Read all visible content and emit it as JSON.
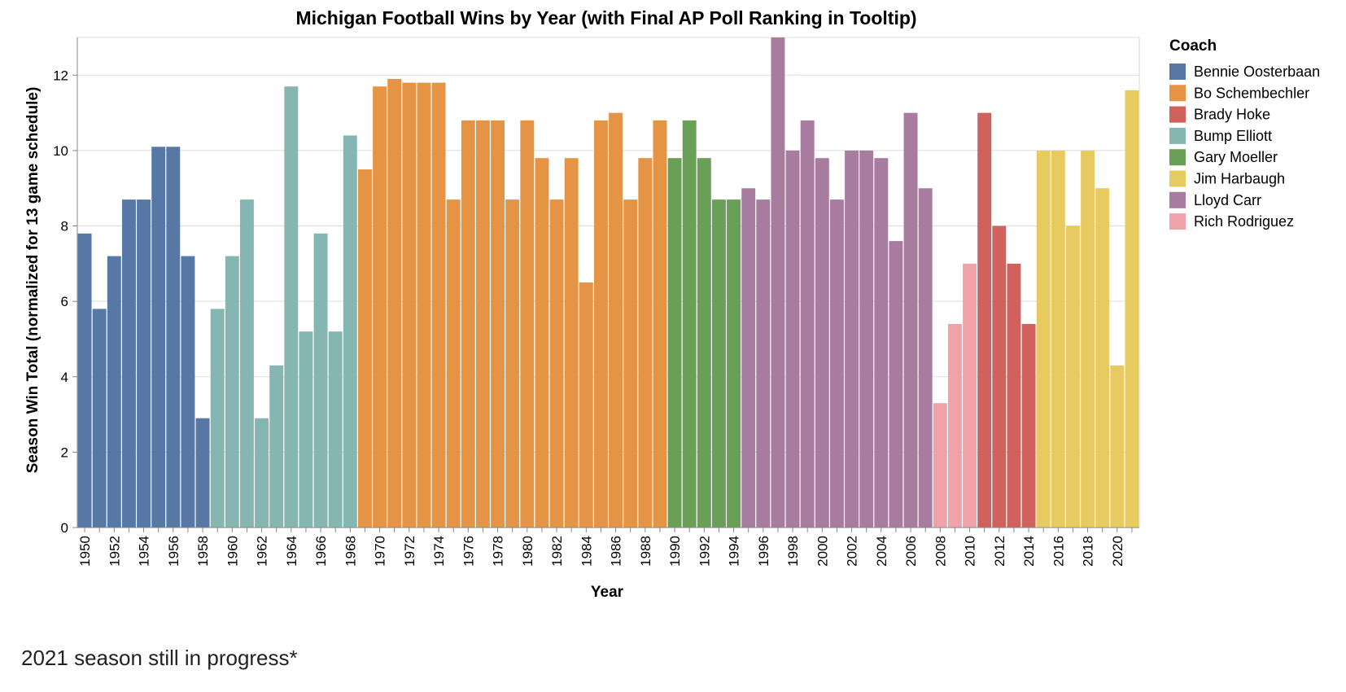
{
  "chart_data": {
    "type": "bar",
    "title": "Michigan Football Wins by Year (with Final AP Poll Ranking in Tooltip)",
    "xlabel": "Year",
    "ylabel": "Season Win Total (normalized for 13 game schedule)",
    "ylim": [
      0,
      13
    ],
    "yticks": [
      0,
      2,
      4,
      6,
      8,
      10,
      12
    ],
    "grid": true,
    "legend_title": "Coach",
    "legend_position": "right",
    "coaches": [
      {
        "name": "Bennie Oosterbaan",
        "color": "#5778a4"
      },
      {
        "name": "Bo Schembechler",
        "color": "#e49444"
      },
      {
        "name": "Brady Hoke",
        "color": "#d1615d"
      },
      {
        "name": "Bump Elliott",
        "color": "#85b6b2"
      },
      {
        "name": "Gary Moeller",
        "color": "#6a9f58"
      },
      {
        "name": "Jim Harbaugh",
        "color": "#e7ca60"
      },
      {
        "name": "Lloyd Carr",
        "color": "#a87c9f"
      },
      {
        "name": "Rich Rodriguez",
        "color": "#f1a2a9"
      }
    ],
    "x_tick_labels": [
      "1950",
      "1952",
      "1954",
      "1956",
      "1958",
      "1960",
      "1962",
      "1964",
      "1966",
      "1968",
      "1970",
      "1972",
      "1974",
      "1976",
      "1978",
      "1980",
      "1982",
      "1984",
      "1986",
      "1988",
      "1990",
      "1992",
      "1994",
      "1996",
      "1998",
      "2000",
      "2002",
      "2004",
      "2006",
      "2008",
      "2010",
      "2012",
      "2014",
      "2016",
      "2018",
      "2020"
    ],
    "bars": [
      {
        "year": 1950,
        "wins": 7.8,
        "coach": "Bennie Oosterbaan"
      },
      {
        "year": 1951,
        "wins": 5.8,
        "coach": "Bennie Oosterbaan"
      },
      {
        "year": 1952,
        "wins": 7.2,
        "coach": "Bennie Oosterbaan"
      },
      {
        "year": 1953,
        "wins": 8.7,
        "coach": "Bennie Oosterbaan"
      },
      {
        "year": 1954,
        "wins": 8.7,
        "coach": "Bennie Oosterbaan"
      },
      {
        "year": 1955,
        "wins": 10.1,
        "coach": "Bennie Oosterbaan"
      },
      {
        "year": 1956,
        "wins": 10.1,
        "coach": "Bennie Oosterbaan"
      },
      {
        "year": 1957,
        "wins": 7.2,
        "coach": "Bennie Oosterbaan"
      },
      {
        "year": 1958,
        "wins": 2.9,
        "coach": "Bennie Oosterbaan"
      },
      {
        "year": 1959,
        "wins": 5.8,
        "coach": "Bump Elliott"
      },
      {
        "year": 1960,
        "wins": 7.2,
        "coach": "Bump Elliott"
      },
      {
        "year": 1961,
        "wins": 8.7,
        "coach": "Bump Elliott"
      },
      {
        "year": 1962,
        "wins": 2.9,
        "coach": "Bump Elliott"
      },
      {
        "year": 1963,
        "wins": 4.3,
        "coach": "Bump Elliott"
      },
      {
        "year": 1964,
        "wins": 11.7,
        "coach": "Bump Elliott"
      },
      {
        "year": 1965,
        "wins": 5.2,
        "coach": "Bump Elliott"
      },
      {
        "year": 1966,
        "wins": 7.8,
        "coach": "Bump Elliott"
      },
      {
        "year": 1967,
        "wins": 5.2,
        "coach": "Bump Elliott"
      },
      {
        "year": 1968,
        "wins": 10.4,
        "coach": "Bump Elliott"
      },
      {
        "year": 1969,
        "wins": 9.5,
        "coach": "Bo Schembechler"
      },
      {
        "year": 1970,
        "wins": 11.7,
        "coach": "Bo Schembechler"
      },
      {
        "year": 1971,
        "wins": 11.9,
        "coach": "Bo Schembechler"
      },
      {
        "year": 1972,
        "wins": 11.8,
        "coach": "Bo Schembechler"
      },
      {
        "year": 1973,
        "wins": 11.8,
        "coach": "Bo Schembechler"
      },
      {
        "year": 1974,
        "wins": 11.8,
        "coach": "Bo Schembechler"
      },
      {
        "year": 1975,
        "wins": 8.7,
        "coach": "Bo Schembechler"
      },
      {
        "year": 1976,
        "wins": 10.8,
        "coach": "Bo Schembechler"
      },
      {
        "year": 1977,
        "wins": 10.8,
        "coach": "Bo Schembechler"
      },
      {
        "year": 1978,
        "wins": 10.8,
        "coach": "Bo Schembechler"
      },
      {
        "year": 1979,
        "wins": 8.7,
        "coach": "Bo Schembechler"
      },
      {
        "year": 1980,
        "wins": 10.8,
        "coach": "Bo Schembechler"
      },
      {
        "year": 1981,
        "wins": 9.8,
        "coach": "Bo Schembechler"
      },
      {
        "year": 1982,
        "wins": 8.7,
        "coach": "Bo Schembechler"
      },
      {
        "year": 1983,
        "wins": 9.8,
        "coach": "Bo Schembechler"
      },
      {
        "year": 1984,
        "wins": 6.5,
        "coach": "Bo Schembechler"
      },
      {
        "year": 1985,
        "wins": 10.8,
        "coach": "Bo Schembechler"
      },
      {
        "year": 1986,
        "wins": 11.0,
        "coach": "Bo Schembechler"
      },
      {
        "year": 1987,
        "wins": 8.7,
        "coach": "Bo Schembechler"
      },
      {
        "year": 1988,
        "wins": 9.8,
        "coach": "Bo Schembechler"
      },
      {
        "year": 1989,
        "wins": 10.8,
        "coach": "Bo Schembechler"
      },
      {
        "year": 1990,
        "wins": 9.8,
        "coach": "Gary Moeller"
      },
      {
        "year": 1991,
        "wins": 10.8,
        "coach": "Gary Moeller"
      },
      {
        "year": 1992,
        "wins": 9.8,
        "coach": "Gary Moeller"
      },
      {
        "year": 1993,
        "wins": 8.7,
        "coach": "Gary Moeller"
      },
      {
        "year": 1994,
        "wins": 8.7,
        "coach": "Gary Moeller"
      },
      {
        "year": 1995,
        "wins": 9.0,
        "coach": "Lloyd Carr"
      },
      {
        "year": 1996,
        "wins": 8.7,
        "coach": "Lloyd Carr"
      },
      {
        "year": 1997,
        "wins": 13.0,
        "coach": "Lloyd Carr"
      },
      {
        "year": 1998,
        "wins": 10.0,
        "coach": "Lloyd Carr"
      },
      {
        "year": 1999,
        "wins": 10.8,
        "coach": "Lloyd Carr"
      },
      {
        "year": 2000,
        "wins": 9.8,
        "coach": "Lloyd Carr"
      },
      {
        "year": 2001,
        "wins": 8.7,
        "coach": "Lloyd Carr"
      },
      {
        "year": 2002,
        "wins": 10.0,
        "coach": "Lloyd Carr"
      },
      {
        "year": 2003,
        "wins": 10.0,
        "coach": "Lloyd Carr"
      },
      {
        "year": 2004,
        "wins": 9.8,
        "coach": "Lloyd Carr"
      },
      {
        "year": 2005,
        "wins": 7.6,
        "coach": "Lloyd Carr"
      },
      {
        "year": 2006,
        "wins": 11.0,
        "coach": "Lloyd Carr"
      },
      {
        "year": 2007,
        "wins": 9.0,
        "coach": "Lloyd Carr"
      },
      {
        "year": 2008,
        "wins": 3.3,
        "coach": "Rich Rodriguez"
      },
      {
        "year": 2009,
        "wins": 5.4,
        "coach": "Rich Rodriguez"
      },
      {
        "year": 2010,
        "wins": 7.0,
        "coach": "Rich Rodriguez"
      },
      {
        "year": 2011,
        "wins": 11.0,
        "coach": "Brady Hoke"
      },
      {
        "year": 2012,
        "wins": 8.0,
        "coach": "Brady Hoke"
      },
      {
        "year": 2013,
        "wins": 7.0,
        "coach": "Brady Hoke"
      },
      {
        "year": 2014,
        "wins": 5.4,
        "coach": "Brady Hoke"
      },
      {
        "year": 2015,
        "wins": 10.0,
        "coach": "Jim Harbaugh"
      },
      {
        "year": 2016,
        "wins": 10.0,
        "coach": "Jim Harbaugh"
      },
      {
        "year": 2017,
        "wins": 8.0,
        "coach": "Jim Harbaugh"
      },
      {
        "year": 2018,
        "wins": 10.0,
        "coach": "Jim Harbaugh"
      },
      {
        "year": 2019,
        "wins": 9.0,
        "coach": "Jim Harbaugh"
      },
      {
        "year": 2020,
        "wins": 4.3,
        "coach": "Jim Harbaugh"
      },
      {
        "year": 2021,
        "wins": 11.6,
        "coach": "Jim Harbaugh"
      }
    ]
  },
  "footnote": "2021 season still in progress*"
}
